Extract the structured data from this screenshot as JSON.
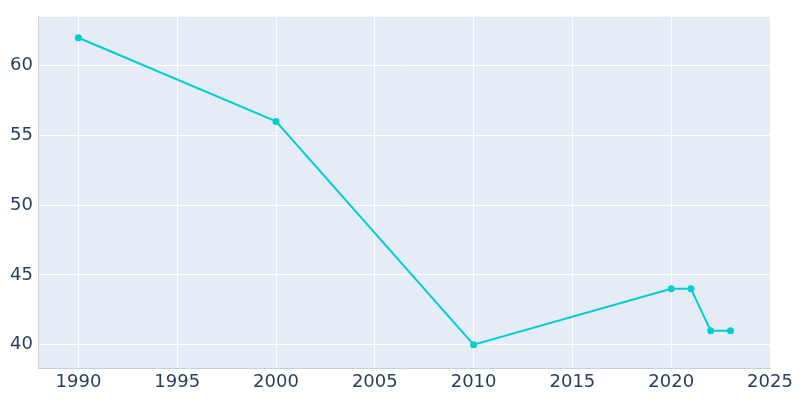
{
  "chart_data": {
    "type": "line",
    "x": [
      1990,
      2000,
      2010,
      2020,
      2021,
      2022,
      2023
    ],
    "values": [
      62,
      56,
      40,
      44,
      44,
      41,
      41
    ],
    "color": "#00ced1",
    "marker": "circle",
    "xlim": [
      1988,
      2025
    ],
    "xticks": [
      1990,
      1995,
      2000,
      2005,
      2010,
      2015,
      2020,
      2025
    ],
    "ylim": [
      38.3,
      63.5
    ],
    "yticks": [
      40,
      45,
      50,
      55,
      60
    ],
    "grid": true
  }
}
